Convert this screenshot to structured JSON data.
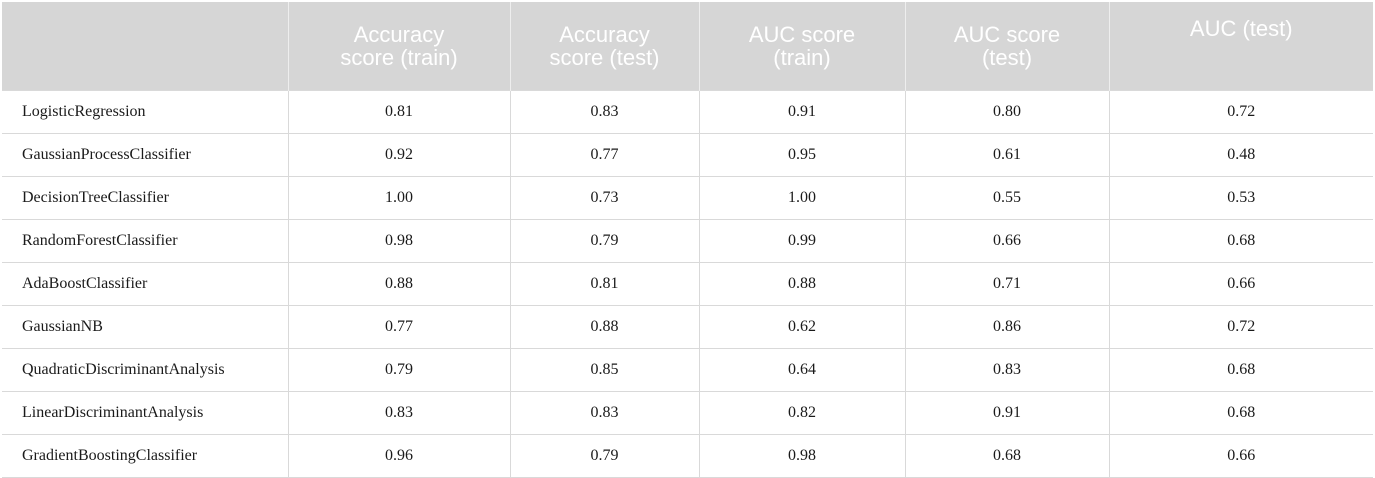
{
  "table": {
    "headers": [
      {
        "line1": "",
        "line2": ""
      },
      {
        "line1": "Accuracy",
        "line2": "score (train)"
      },
      {
        "line1": "Accuracy",
        "line2": "score (test)"
      },
      {
        "line1": "AUC score",
        "line2": "(train)"
      },
      {
        "line1": "AUC score",
        "line2": "(test)"
      },
      {
        "line1": "AUC (test)",
        "line2": ""
      }
    ],
    "rows": [
      [
        "LogisticRegression",
        "0.81",
        "0.83",
        "0.91",
        "0.80",
        "0.72"
      ],
      [
        "GaussianProcessClassifier",
        "0.92",
        "0.77",
        "0.95",
        "0.61",
        "0.48"
      ],
      [
        "DecisionTreeClassifier",
        "1.00",
        "0.73",
        "1.00",
        "0.55",
        "0.53"
      ],
      [
        "RandomForestClassifier",
        "0.98",
        "0.79",
        "0.99",
        "0.66",
        "0.68"
      ],
      [
        "AdaBoostClassifier",
        "0.88",
        "0.81",
        "0.88",
        "0.71",
        "0.66"
      ],
      [
        "GaussianNB",
        "0.77",
        "0.88",
        "0.62",
        "0.86",
        "0.72"
      ],
      [
        "QuadraticDiscriminantAnalysis",
        "0.79",
        "0.85",
        "0.64",
        "0.83",
        "0.68"
      ],
      [
        "LinearDiscriminantAnalysis",
        "0.83",
        "0.83",
        "0.82",
        "0.91",
        "0.68"
      ],
      [
        "GradientBoostingClassifier",
        "0.96",
        "0.79",
        "0.98",
        "0.68",
        "0.66"
      ]
    ]
  }
}
